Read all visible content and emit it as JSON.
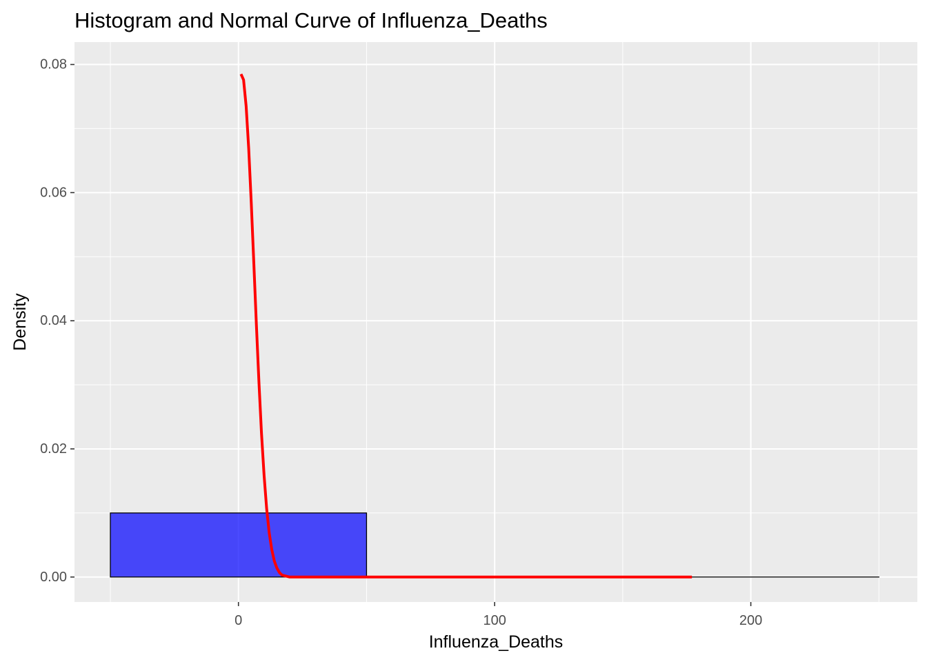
{
  "chart_data": {
    "type": "bar",
    "title": "Histogram and Normal Curve of Influenza_Deaths",
    "xlabel": "Influenza_Deaths",
    "ylabel": "Density",
    "xlim": [
      -64,
      265
    ],
    "ylim": [
      -0.0039,
      0.0835
    ],
    "x_ticks": [
      0,
      100,
      200
    ],
    "x_tick_labels": [
      "0",
      "100",
      "200"
    ],
    "y_ticks": [
      0.0,
      0.02,
      0.04,
      0.06,
      0.08
    ],
    "y_tick_labels": [
      "0.00",
      "0.02",
      "0.04",
      "0.06",
      "0.08"
    ],
    "grid": true,
    "histogram": {
      "bins": [
        {
          "x_start": -50,
          "x_end": 50,
          "density": 0.01
        },
        {
          "x_start": 50,
          "x_end": 150,
          "density": 0.0
        },
        {
          "x_start": 150,
          "x_end": 250,
          "density": 0.0
        }
      ],
      "fill": "#0000ff",
      "fill_opacity": 0.7,
      "stroke": "#000000"
    },
    "normal_curve": {
      "color": "#ff0000",
      "x": [
        1,
        2,
        3,
        4,
        5,
        6,
        7,
        8,
        9,
        10,
        11,
        12,
        13,
        14,
        15,
        16,
        17,
        18,
        20,
        25,
        30,
        40,
        60,
        100,
        140,
        177
      ],
      "y": [
        0.0785,
        0.0776,
        0.0735,
        0.0669,
        0.0584,
        0.049,
        0.0394,
        0.0304,
        0.0224,
        0.0159,
        0.0107,
        0.0069,
        0.0043,
        0.0025,
        0.0014,
        0.0007,
        0.0003,
        0.0002,
        0.0,
        0.0,
        0.0,
        0.0,
        0.0,
        0.0,
        0.0,
        0.0
      ]
    }
  }
}
